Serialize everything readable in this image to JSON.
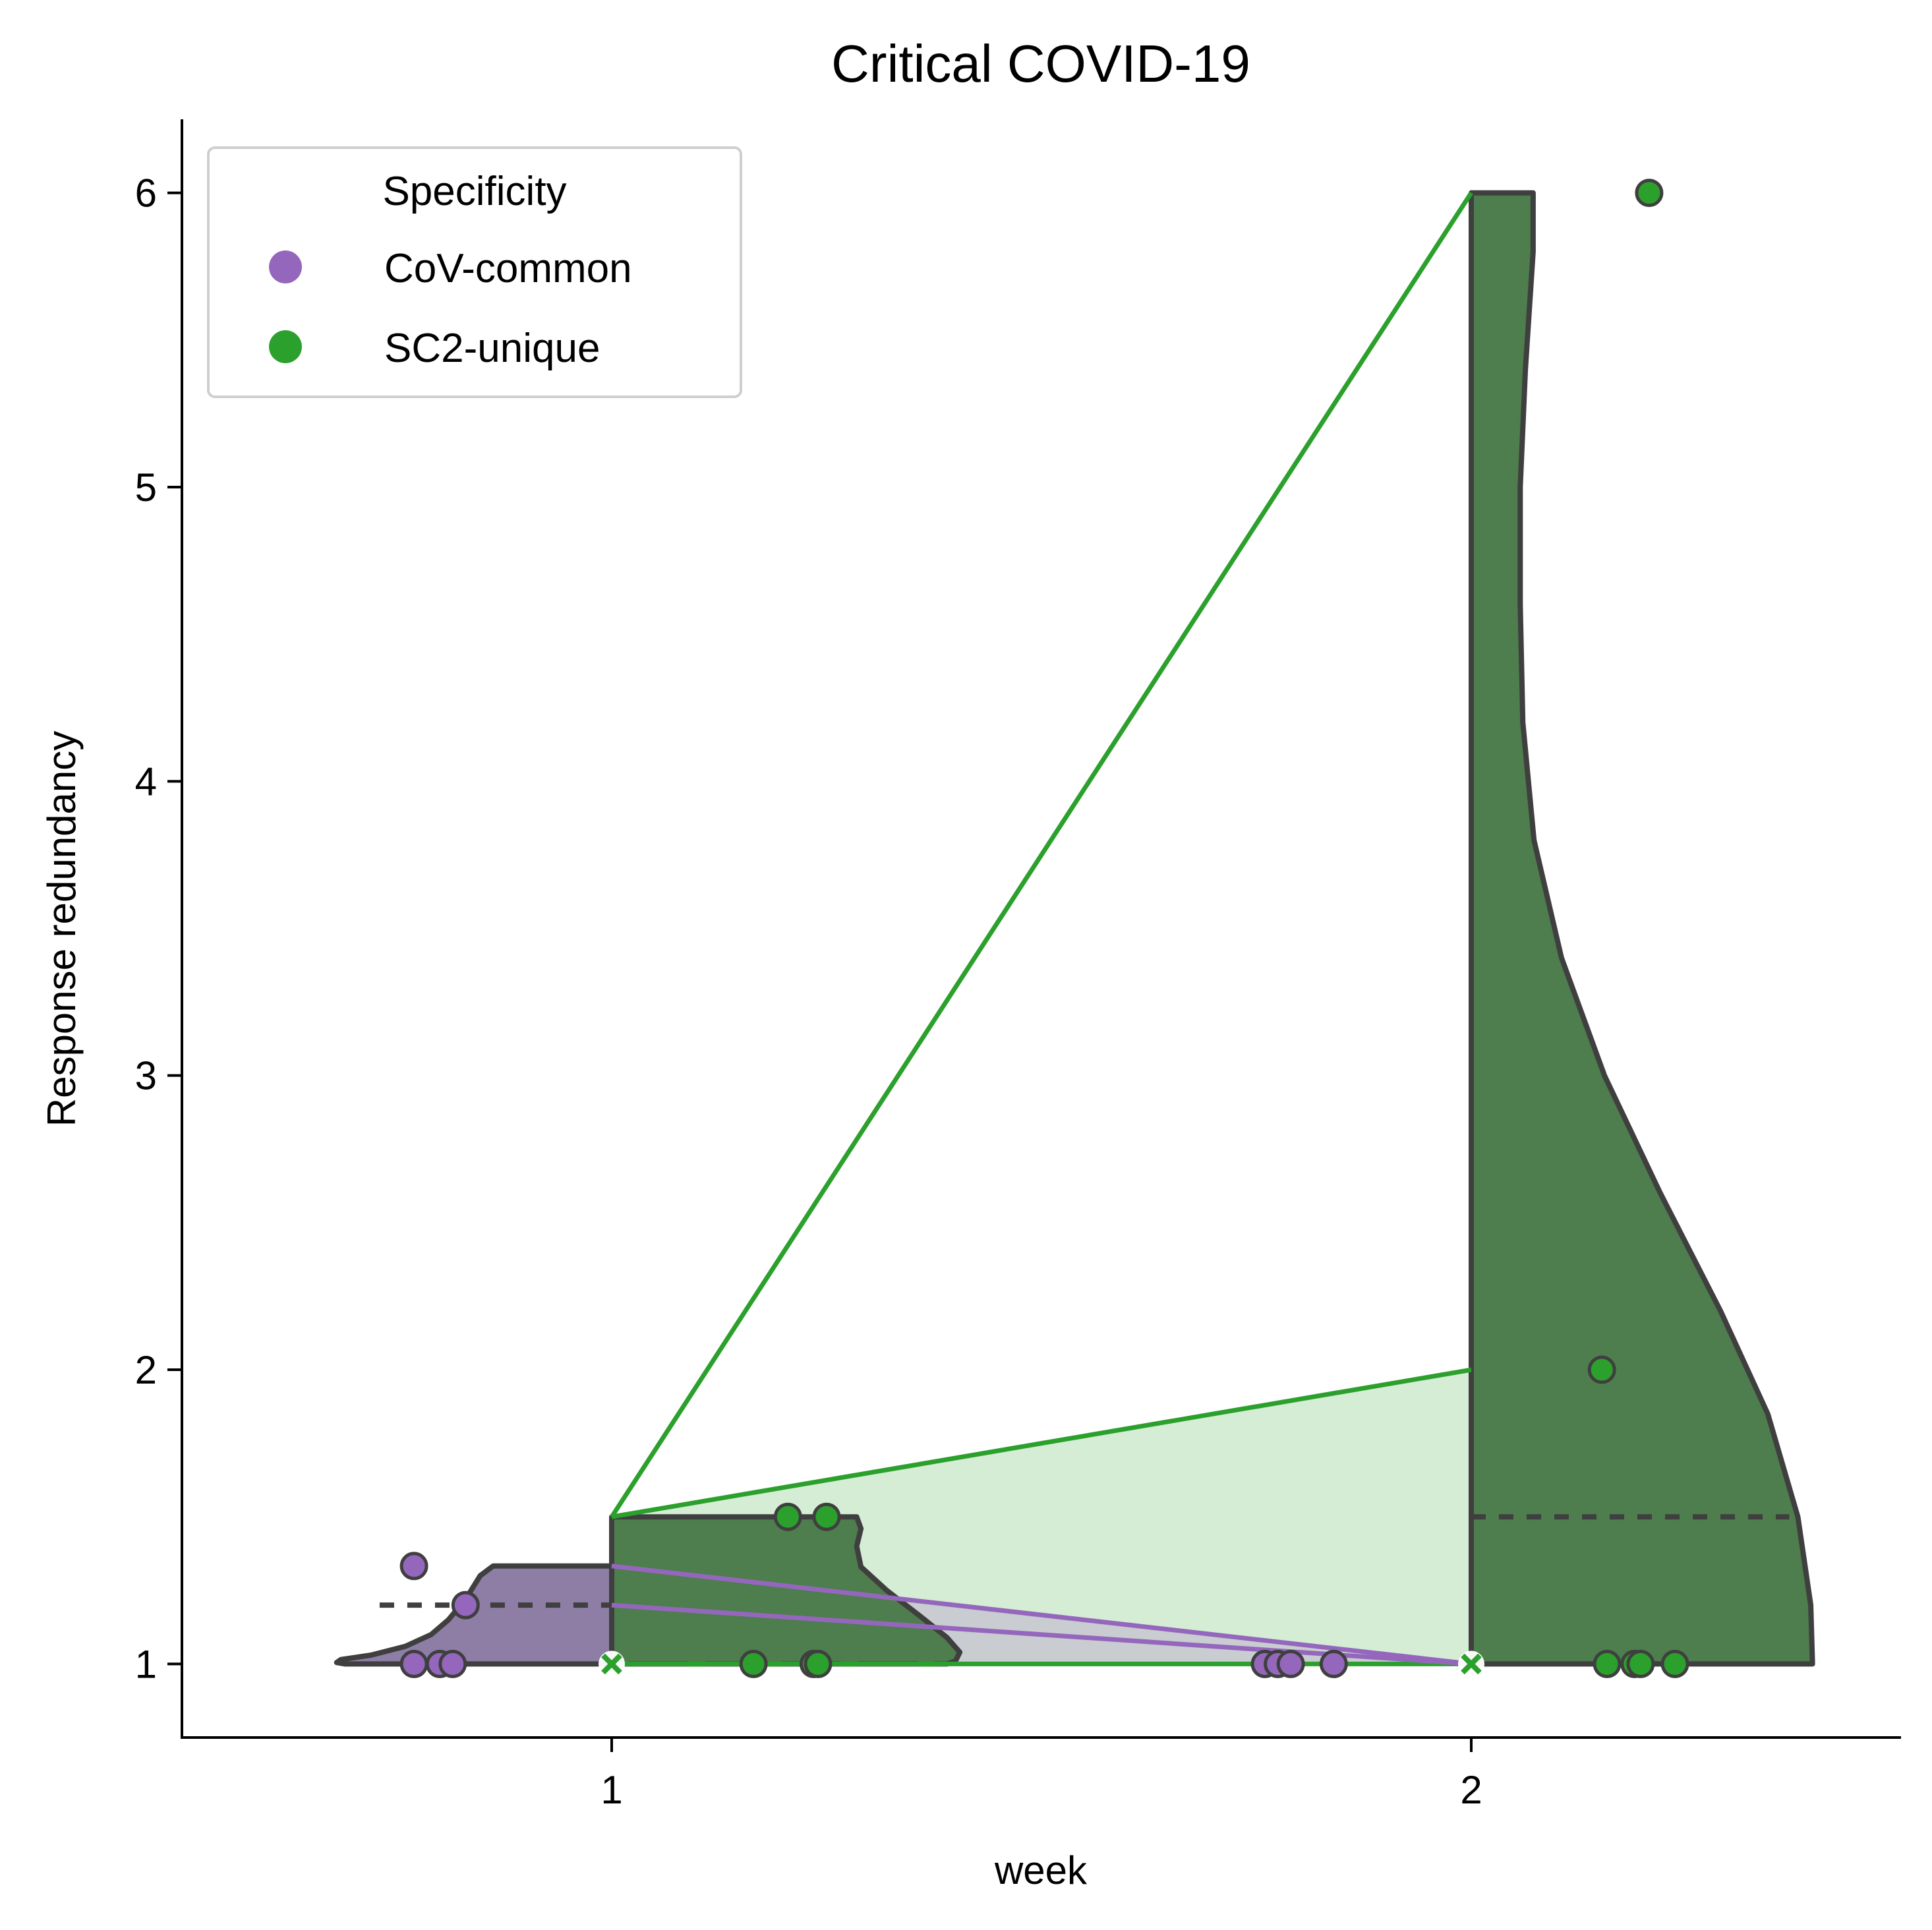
{
  "chart_data": {
    "type": "violin",
    "title": "Critical COVID-19",
    "xlabel": "week",
    "ylabel": "Response redundancy",
    "x_ticks": [
      "1",
      "2"
    ],
    "y_ticks": [
      "1",
      "2",
      "3",
      "4",
      "5",
      "6"
    ],
    "xlim": [
      0.5,
      2.5
    ],
    "ylim": [
      0.75,
      6.25
    ],
    "legend": {
      "title": "Specificity",
      "position": "top-left",
      "entries": [
        {
          "label": "CoV-common",
          "color": "#9467bd"
        },
        {
          "label": "SC2-unique",
          "color": "#2ca02c"
        }
      ]
    },
    "colors": {
      "cov_common_marker": "#9467bd",
      "cov_common_violin": "#8e7ea6",
      "sc2_unique_marker": "#2ca02c",
      "sc2_unique_violin": "#4e7d4e",
      "sc2_unique_band": "#d5ecd5",
      "cov_common_band": "#c8c9cf",
      "violin_edge": "#3f3f3f"
    },
    "series": [
      {
        "name": "CoV-common",
        "violin": {
          "week": 1,
          "side": "left",
          "median": 1.2,
          "max": 1.333
        },
        "points": [
          {
            "x": 0.77,
            "y": 1.333
          },
          {
            "x": 0.83,
            "y": 1.2
          },
          {
            "x": 0.77,
            "y": 1.0
          },
          {
            "x": 0.8,
            "y": 1.0
          },
          {
            "x": 0.815,
            "y": 1.0
          },
          {
            "x": 1.76,
            "y": 1.0
          },
          {
            "x": 1.775,
            "y": 1.0
          },
          {
            "x": 1.79,
            "y": 1.0
          },
          {
            "x": 1.84,
            "y": 1.0
          }
        ],
        "means": [
          {
            "week": 1,
            "value": 1.0
          },
          {
            "week": 2,
            "value": 1.0
          }
        ],
        "lines": [
          {
            "from": [
              1,
              1.333
            ],
            "to": [
              2,
              1.0
            ]
          },
          {
            "from": [
              1,
              1.2
            ],
            "to": [
              2,
              1.0
            ]
          },
          {
            "from": [
              1,
              1.0
            ],
            "to": [
              2,
              1.0
            ]
          }
        ]
      },
      {
        "name": "SC2-unique",
        "violin": {
          "week": 2,
          "side": "right",
          "median": 1.5,
          "max": 6.0
        },
        "violin_week1": {
          "week": 1,
          "side": "right",
          "median": 1.0,
          "max": 1.5
        },
        "points": [
          {
            "x": 1.205,
            "y": 1.5
          },
          {
            "x": 1.25,
            "y": 1.5
          },
          {
            "x": 1.165,
            "y": 1.0
          },
          {
            "x": 1.235,
            "y": 1.0
          },
          {
            "x": 1.24,
            "y": 1.0
          },
          {
            "x": 2.207,
            "y": 6.0
          },
          {
            "x": 2.152,
            "y": 2.0
          },
          {
            "x": 2.158,
            "y": 1.0
          },
          {
            "x": 2.19,
            "y": 1.0
          },
          {
            "x": 2.197,
            "y": 1.0
          },
          {
            "x": 2.237,
            "y": 1.0
          }
        ],
        "means": [
          {
            "week": 1,
            "value": 1.0
          },
          {
            "week": 2,
            "value": 1.0
          }
        ],
        "lines": [
          {
            "from": [
              1,
              1.5
            ],
            "to": [
              2,
              6.0
            ]
          },
          {
            "from": [
              1,
              1.5
            ],
            "to": [
              2,
              2.0
            ]
          },
          {
            "from": [
              1,
              1.0
            ],
            "to": [
              2,
              1.0
            ]
          }
        ]
      }
    ]
  }
}
